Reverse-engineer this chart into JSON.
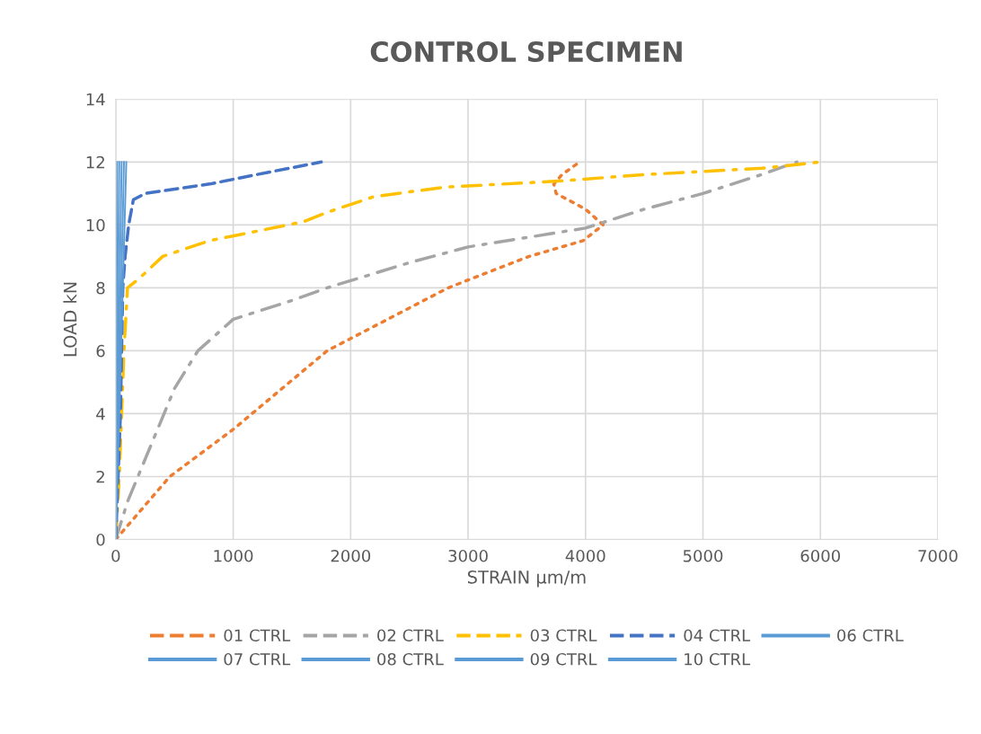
{
  "chart_data": {
    "type": "line",
    "title": "CONTROL SPECIMEN",
    "xlabel": "STRAIN µm/m",
    "ylabel": "LOAD kN",
    "xlim": [
      0,
      7000
    ],
    "xticks": [
      0,
      1000,
      2000,
      3000,
      4000,
      5000,
      6000,
      7000
    ],
    "ylim": [
      0,
      14
    ],
    "yticks": [
      0,
      2,
      4,
      6,
      8,
      10,
      12,
      14
    ],
    "grid": true,
    "legend": "bottom",
    "marker": "none",
    "series": [
      {
        "name": "01 CTRL",
        "color": "#ed7d31",
        "line_style": "dotted",
        "x": [
          0,
          460,
          1000,
          1800,
          2830,
          3520,
          3980,
          4150,
          4000,
          3750,
          3730,
          3800,
          3950
        ],
        "values": [
          0,
          2,
          3.5,
          6,
          8,
          9,
          9.5,
          10,
          10.5,
          11,
          11.3,
          11.6,
          12
        ]
      },
      {
        "name": "02 CTRL",
        "color": "#a5a5a5",
        "line_style": "dashdot",
        "x": [
          0,
          100,
          300,
          500,
          700,
          1000,
          1500,
          1800,
          2500,
          3000,
          3500,
          4000,
          4500,
          5000,
          5500,
          5800
        ],
        "values": [
          0,
          1.2,
          3,
          4.8,
          6,
          7,
          7.6,
          8,
          8.8,
          9.3,
          9.6,
          9.9,
          10.5,
          11,
          11.6,
          12
        ]
      },
      {
        "name": "03 CTRL",
        "color": "#ffc000",
        "line_style": "dashdot",
        "x": [
          0,
          30,
          50,
          70,
          100,
          200,
          400,
          800,
          1600,
          1800,
          2200,
          2800,
          3800,
          4500,
          5500,
          6000
        ],
        "values": [
          0,
          2,
          4,
          6,
          8,
          8.3,
          9,
          9.5,
          10.1,
          10.4,
          10.9,
          11.2,
          11.4,
          11.6,
          11.8,
          12
        ]
      },
      {
        "name": "04 CTRL",
        "color": "#4472c4",
        "line_style": "dashed",
        "x": [
          0,
          20,
          40,
          50,
          60,
          80,
          110,
          150,
          250,
          800,
          1200,
          1750
        ],
        "values": [
          0,
          2,
          4,
          6,
          8,
          9,
          10,
          10.8,
          11,
          11.3,
          11.6,
          12
        ]
      },
      {
        "name": "06 CTRL",
        "color": "#5b9bd5",
        "line_style": "solid",
        "x": [
          0,
          45,
          90
        ],
        "values": [
          0,
          6,
          12
        ]
      },
      {
        "name": "07 CTRL",
        "color": "#5b9bd5",
        "line_style": "solid",
        "x": [
          0,
          35,
          70
        ],
        "values": [
          0,
          6,
          12
        ]
      },
      {
        "name": "08 CTRL",
        "color": "#5b9bd5",
        "line_style": "solid",
        "x": [
          0,
          25,
          50
        ],
        "values": [
          0,
          6,
          12
        ]
      },
      {
        "name": "09 CTRL",
        "color": "#5b9bd5",
        "line_style": "solid",
        "x": [
          0,
          15,
          30
        ],
        "values": [
          0,
          6,
          12
        ]
      },
      {
        "name": "10 CTRL",
        "color": "#5b9bd5",
        "line_style": "solid",
        "x": [
          0,
          6,
          12
        ],
        "values": [
          0,
          6,
          12
        ]
      }
    ]
  }
}
